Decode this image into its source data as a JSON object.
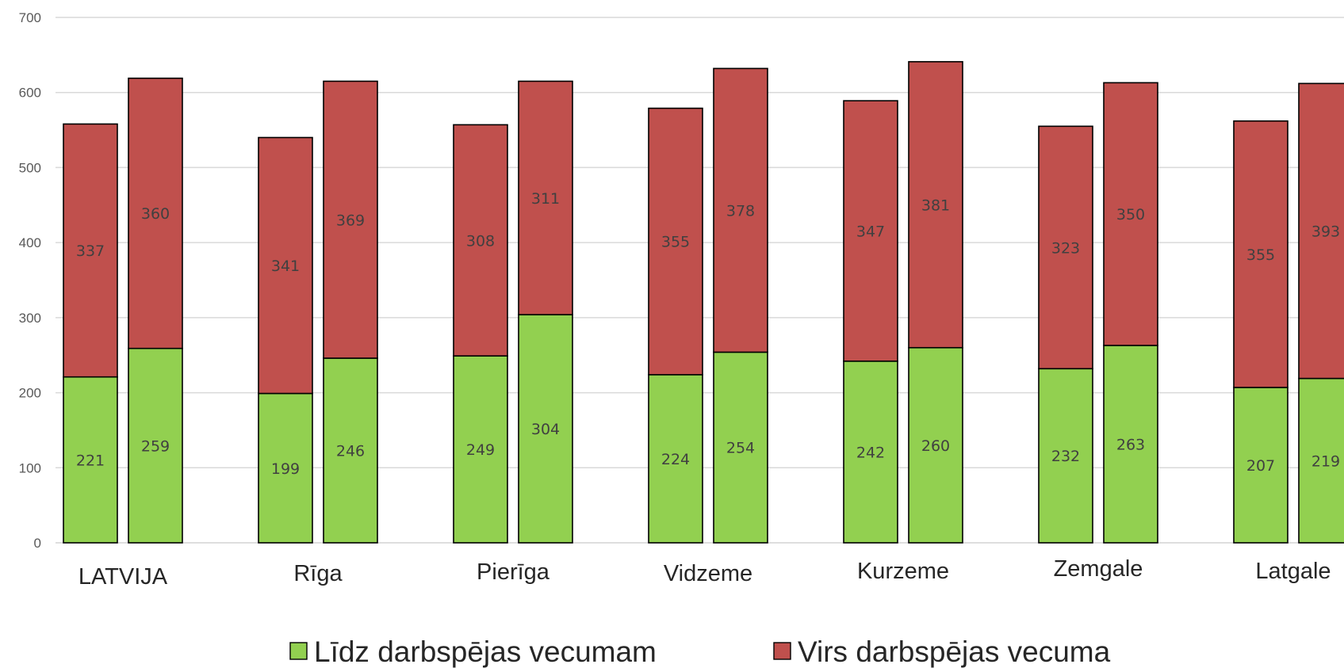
{
  "chart_data": {
    "type": "bar",
    "stacked": true,
    "categories": [
      "LATVIJA",
      "Rīga",
      "Pierīga",
      "Vidzeme",
      "Kurzeme",
      "Zemgale",
      "Latgale"
    ],
    "bars_per_category": 2,
    "series": [
      {
        "name": "Līdz darbspējas vecumam",
        "color": "#92d050",
        "values": [
          [
            221,
            259
          ],
          [
            199,
            246
          ],
          [
            249,
            304
          ],
          [
            224,
            254
          ],
          [
            242,
            260
          ],
          [
            232,
            263
          ],
          [
            207,
            219
          ]
        ]
      },
      {
        "name": "Virs darbspējas vecuma",
        "color": "#c0504d",
        "values": [
          [
            337,
            360
          ],
          [
            341,
            369
          ],
          [
            308,
            311
          ],
          [
            355,
            378
          ],
          [
            347,
            381
          ],
          [
            323,
            350
          ],
          [
            355,
            393
          ]
        ]
      }
    ],
    "yticks": [
      "0",
      "100",
      "200",
      "300",
      "400",
      "500",
      "600",
      "700"
    ],
    "ylim": [
      0,
      700
    ],
    "grid": true,
    "legend_position": "bottom"
  }
}
